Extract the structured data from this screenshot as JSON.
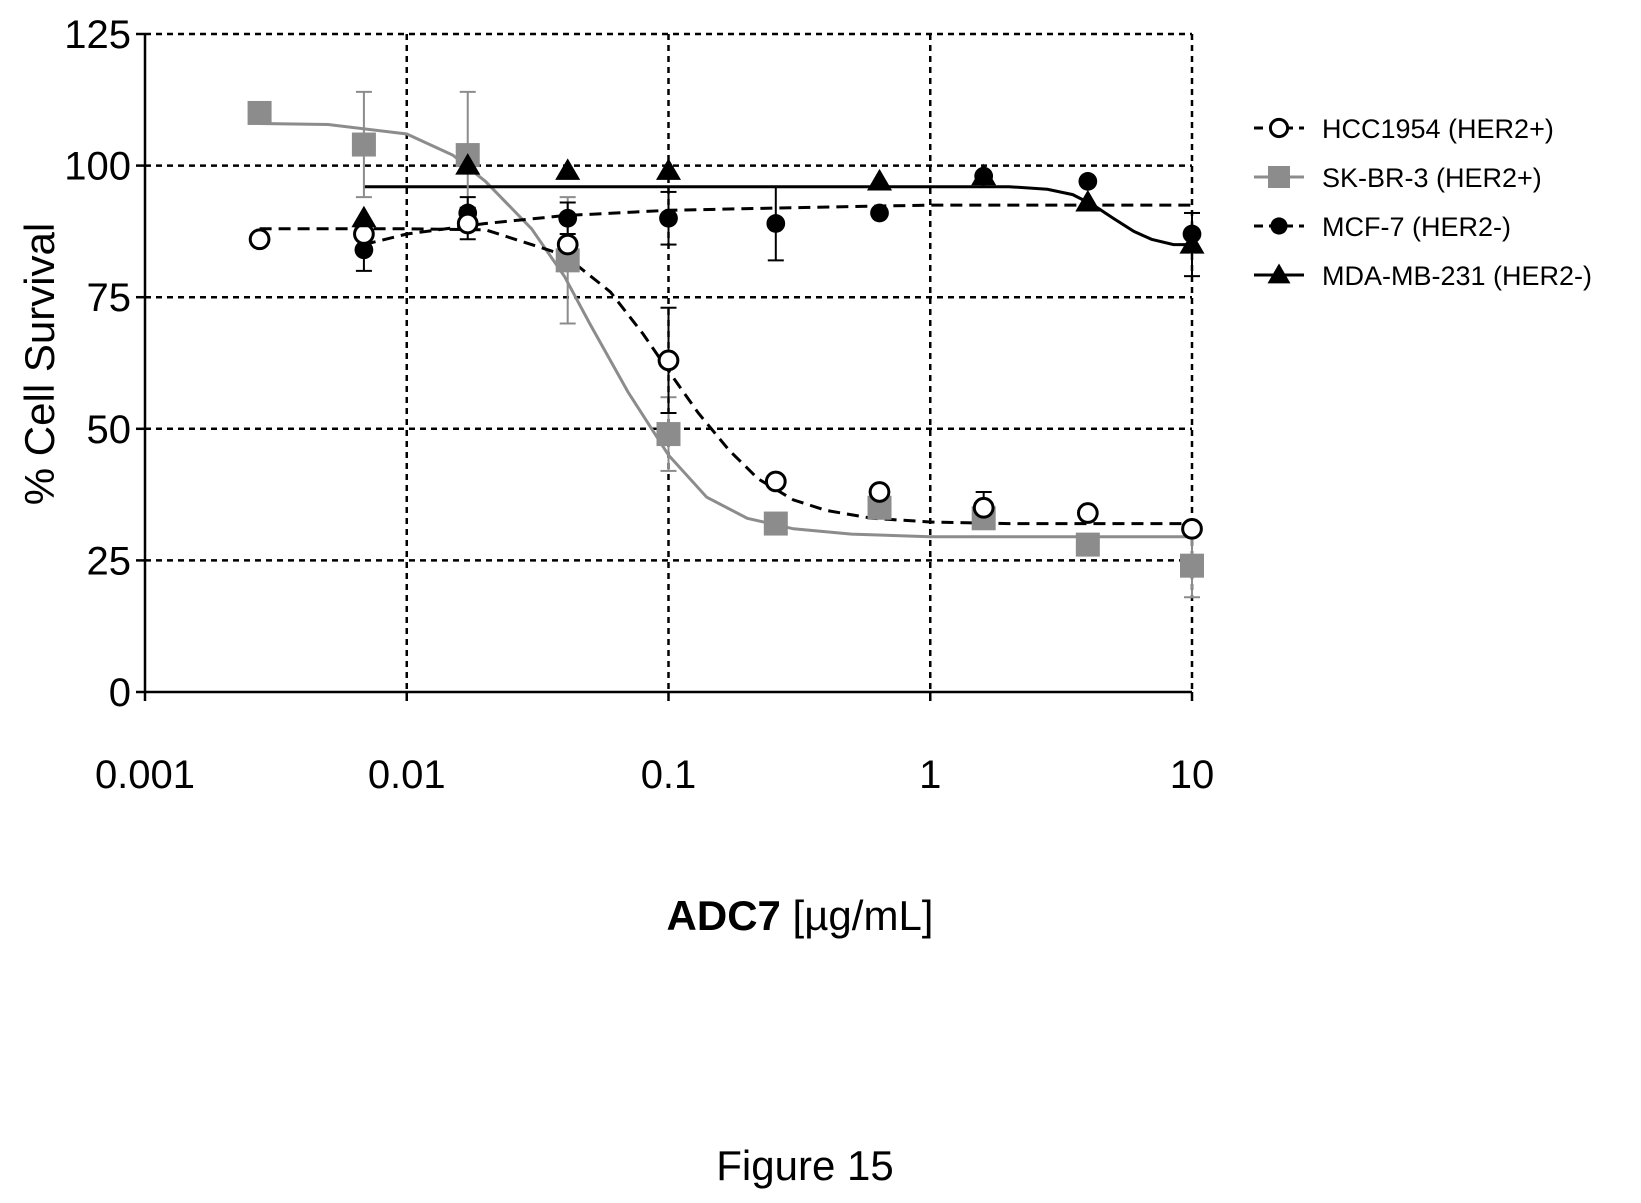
{
  "chart_data": {
    "type": "scatter",
    "title": "",
    "xlabel": {
      "bold": "ADC7",
      "normal": " [µg/mL]"
    },
    "ylabel": "% Cell Survival",
    "x_scale": "log",
    "xlim": [
      0.001,
      10
    ],
    "ylim": [
      0,
      125
    ],
    "x_ticks": [
      0.001,
      0.01,
      0.1,
      1,
      10
    ],
    "x_tick_labels": [
      "0.001",
      "0.01",
      "0.1",
      "1",
      "10"
    ],
    "y_ticks": [
      0,
      25,
      50,
      75,
      100,
      125
    ],
    "y_tick_labels": [
      "0",
      "25",
      "50",
      "75",
      "100",
      "125"
    ],
    "grid": true,
    "legend_position": "right",
    "series": [
      {
        "name": "HCC1954 (HER2+)",
        "marker": "open-circle",
        "color": "#000000",
        "line": "dashed",
        "x": [
          0.00274,
          0.00686,
          0.0171,
          0.0412,
          0.1,
          0.257,
          0.64,
          1.6,
          4.0,
          10
        ],
        "y": [
          86,
          87,
          89,
          85,
          63,
          40,
          38,
          35,
          34,
          31
        ],
        "err": [
          0,
          0,
          3,
          0,
          10,
          0,
          0,
          3,
          0,
          0
        ],
        "curve_x": [
          0.00274,
          0.01,
          0.02,
          0.04,
          0.06,
          0.08,
          0.1,
          0.13,
          0.17,
          0.22,
          0.3,
          0.4,
          0.6,
          1,
          2,
          10
        ],
        "curve_y": [
          88,
          88,
          87.8,
          83,
          76,
          68,
          61,
          53,
          46,
          40.5,
          36.5,
          34.5,
          33,
          32.3,
          32,
          32
        ]
      },
      {
        "name": "SK-BR-3 (HER2+)",
        "marker": "filled-square",
        "color": "#8c8c8c",
        "line": "solid",
        "x": [
          0.00274,
          0.00686,
          0.0171,
          0.0412,
          0.1,
          0.257,
          0.64,
          1.6,
          4.0,
          10
        ],
        "y": [
          110,
          104,
          102,
          82,
          49,
          32,
          35,
          33,
          28,
          24
        ],
        "err": [
          0,
          10,
          12,
          12,
          7,
          0,
          0,
          0,
          0,
          6
        ],
        "curve_x": [
          0.00274,
          0.005,
          0.01,
          0.015,
          0.02,
          0.03,
          0.04,
          0.05,
          0.07,
          0.1,
          0.14,
          0.2,
          0.3,
          0.5,
          1,
          10
        ],
        "curve_y": [
          108,
          107.8,
          106,
          102,
          97,
          88,
          79,
          70,
          57,
          45,
          37,
          33,
          31,
          30,
          29.5,
          29.5
        ]
      },
      {
        "name": "MCF-7 (HER2-)",
        "marker": "filled-circle",
        "color": "#000000",
        "line": "dashed",
        "x": [
          0.00686,
          0.0171,
          0.0412,
          0.1,
          0.257,
          0.64,
          1.6,
          4.0,
          10
        ],
        "y": [
          84,
          91,
          90,
          90,
          89,
          91,
          98,
          97,
          87
        ],
        "err": [
          4,
          3,
          3,
          5,
          7,
          0,
          0,
          0,
          0
        ],
        "curve_x": [
          0.00686,
          0.01,
          0.02,
          0.04,
          0.1,
          0.3,
          1,
          10
        ],
        "curve_y": [
          85,
          87,
          89,
          90.5,
          91.5,
          92,
          92.5,
          92.5
        ]
      },
      {
        "name": "MDA-MB-231 (HER2-)",
        "marker": "filled-triangle",
        "color": "#000000",
        "line": "solid",
        "x": [
          0.00686,
          0.0171,
          0.0412,
          0.1,
          0.64,
          1.6,
          4.0,
          10
        ],
        "y": [
          90,
          100,
          99,
          99,
          97,
          98,
          93,
          85
        ],
        "err": [
          0,
          0,
          0,
          0,
          0,
          0,
          0,
          6
        ],
        "curve_x": [
          0.00686,
          1,
          2,
          2.8,
          3.5,
          4.2,
          5,
          6,
          7,
          8.5,
          10
        ],
        "curve_y": [
          96,
          96,
          96,
          95.5,
          94.5,
          92.5,
          90,
          87.5,
          86,
          85,
          85
        ]
      }
    ]
  },
  "caption": "Figure 15"
}
